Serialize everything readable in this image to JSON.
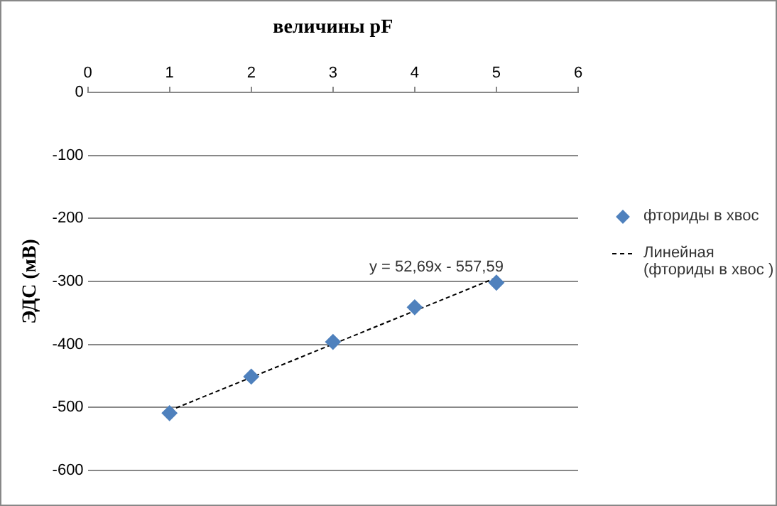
{
  "chart_data": {
    "type": "scatter",
    "xlabel": "величины pF",
    "ylabel": "ЭДС (мВ)",
    "xlim": [
      0,
      6
    ],
    "xticks": [
      0,
      1,
      2,
      3,
      4,
      5,
      6
    ],
    "ylim": [
      -600,
      0
    ],
    "yticks": [
      0,
      -100,
      -200,
      -300,
      -400,
      -500,
      -600
    ],
    "grid": "y",
    "legend": "right",
    "marker": "diamond",
    "annotations": [
      "y = 52,69x - 557,59"
    ],
    "series": [
      {
        "name": "фториды в хвос",
        "color": "#4f81bd",
        "x": [
          1,
          2,
          3,
          4,
          5
        ],
        "values": [
          -509,
          -451,
          -396,
          -341,
          -302
        ]
      },
      {
        "name": "Линейная (фториды в хвос )",
        "type": "line",
        "line_style": "dashed",
        "marker": "none",
        "color": "#000000",
        "x": [
          1,
          5
        ],
        "values": [
          -505,
          -294
        ]
      }
    ]
  }
}
